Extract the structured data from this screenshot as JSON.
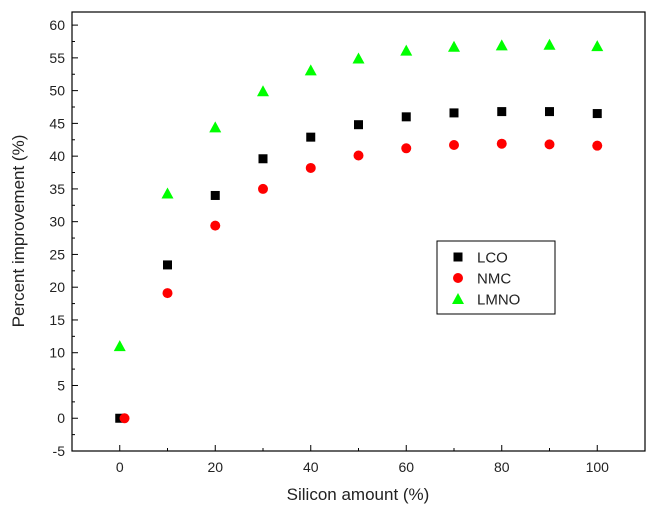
{
  "chart_data": {
    "type": "scatter",
    "xlabel": "Silicon amount (%)",
    "ylabel": "Percent improvement (%)",
    "xlim": [
      -10,
      110
    ],
    "ylim": [
      -5,
      62
    ],
    "xticks": [
      0,
      20,
      40,
      60,
      80,
      100
    ],
    "xticks_minor": [
      -10,
      10,
      30,
      50,
      70,
      90,
      110
    ],
    "yticks": [
      -5,
      0,
      5,
      10,
      15,
      20,
      25,
      30,
      35,
      40,
      45,
      50,
      55,
      60
    ],
    "grid": false,
    "legend_position": "center-right",
    "series": [
      {
        "name": "LCO",
        "marker": "square",
        "color": "#000000",
        "x": [
          0,
          10,
          20,
          30,
          40,
          50,
          60,
          70,
          80,
          90,
          100
        ],
        "y": [
          0,
          23.4,
          34.0,
          39.6,
          42.9,
          44.8,
          46.0,
          46.6,
          46.8,
          46.8,
          46.5
        ]
      },
      {
        "name": "NMC",
        "marker": "circle",
        "color": "#ff0000",
        "x": [
          1,
          10,
          20,
          30,
          40,
          50,
          60,
          70,
          80,
          90,
          100
        ],
        "y": [
          0,
          19.1,
          29.4,
          35.0,
          38.2,
          40.1,
          41.2,
          41.7,
          41.9,
          41.8,
          41.6
        ]
      },
      {
        "name": "LMNO",
        "marker": "triangle",
        "color": "#00ff00",
        "x": [
          0,
          10,
          20,
          30,
          40,
          50,
          60,
          70,
          80,
          90,
          100
        ],
        "y": [
          11.0,
          34.3,
          44.4,
          49.9,
          53.1,
          54.9,
          56.1,
          56.7,
          56.9,
          57.0,
          56.8
        ]
      }
    ]
  }
}
